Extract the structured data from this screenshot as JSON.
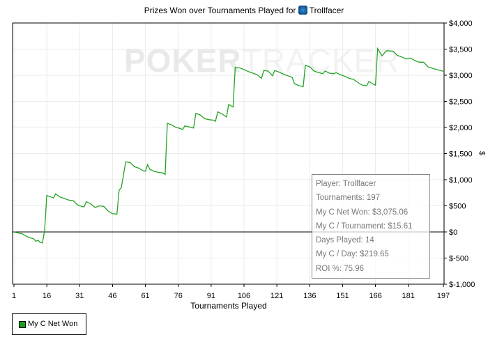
{
  "chart_data": {
    "type": "line",
    "title": "Prizes Won over Tournaments Played for",
    "title_player": "Trollfacer",
    "title_icon": "pokerstars-spade-icon",
    "watermark": "POKERTRACKER",
    "xlabel": "Tournaments Played",
    "ylabel": "$",
    "xlim": [
      1,
      197
    ],
    "ylim": [
      -1000,
      4000
    ],
    "x_ticks": [
      "1",
      "16",
      "31",
      "46",
      "61",
      "76",
      "91",
      "106",
      "121",
      "136",
      "151",
      "166",
      "181",
      "197"
    ],
    "y_ticks": [
      "$4,000",
      "$3,500",
      "$3,000",
      "$2,500",
      "$2,000",
      "$1,500",
      "$1,000",
      "$500",
      "$0",
      "$-500",
      "$-1,000"
    ],
    "y_tick_values": [
      4000,
      3500,
      3000,
      2500,
      2000,
      1500,
      1000,
      500,
      0,
      -500,
      -1000
    ],
    "grid": true,
    "legend_placement": "bottom-left",
    "series": [
      {
        "name": "My C Net Won",
        "color": "#22a322",
        "points": [
          [
            1,
            0
          ],
          [
            3,
            -20
          ],
          [
            5,
            -40
          ],
          [
            7,
            -90
          ],
          [
            9,
            -120
          ],
          [
            10,
            -130
          ],
          [
            11,
            -180
          ],
          [
            12,
            -160
          ],
          [
            13,
            -200
          ],
          [
            14,
            -210
          ],
          [
            15,
            30
          ],
          [
            16,
            700
          ],
          [
            18,
            670
          ],
          [
            19,
            650
          ],
          [
            20,
            730
          ],
          [
            22,
            670
          ],
          [
            24,
            640
          ],
          [
            26,
            610
          ],
          [
            28,
            600
          ],
          [
            30,
            520
          ],
          [
            32,
            490
          ],
          [
            33,
            480
          ],
          [
            34,
            580
          ],
          [
            36,
            540
          ],
          [
            38,
            470
          ],
          [
            40,
            500
          ],
          [
            42,
            490
          ],
          [
            44,
            400
          ],
          [
            46,
            350
          ],
          [
            48,
            340
          ],
          [
            49,
            800
          ],
          [
            50,
            850
          ],
          [
            52,
            1340
          ],
          [
            54,
            1330
          ],
          [
            56,
            1250
          ],
          [
            58,
            1220
          ],
          [
            60,
            1170
          ],
          [
            61,
            1160
          ],
          [
            62,
            1290
          ],
          [
            63,
            1200
          ],
          [
            65,
            1160
          ],
          [
            67,
            1140
          ],
          [
            69,
            1130
          ],
          [
            70,
            1100
          ],
          [
            71,
            2080
          ],
          [
            73,
            2050
          ],
          [
            75,
            2000
          ],
          [
            77,
            1980
          ],
          [
            78,
            1960
          ],
          [
            79,
            2030
          ],
          [
            81,
            2010
          ],
          [
            83,
            1990
          ],
          [
            84,
            2270
          ],
          [
            86,
            2240
          ],
          [
            88,
            2170
          ],
          [
            90,
            2150
          ],
          [
            92,
            2140
          ],
          [
            93,
            2120
          ],
          [
            94,
            2300
          ],
          [
            96,
            2260
          ],
          [
            98,
            2200
          ],
          [
            99,
            2440
          ],
          [
            101,
            2390
          ],
          [
            102,
            3150
          ],
          [
            104,
            3140
          ],
          [
            106,
            3110
          ],
          [
            108,
            3070
          ],
          [
            110,
            3040
          ],
          [
            112,
            3010
          ],
          [
            114,
            2940
          ],
          [
            115,
            3090
          ],
          [
            117,
            3080
          ],
          [
            119,
            2990
          ],
          [
            120,
            3090
          ],
          [
            122,
            3060
          ],
          [
            124,
            3020
          ],
          [
            126,
            2990
          ],
          [
            128,
            2960
          ],
          [
            129,
            2840
          ],
          [
            131,
            2800
          ],
          [
            133,
            2780
          ],
          [
            134,
            3190
          ],
          [
            136,
            3160
          ],
          [
            138,
            3080
          ],
          [
            140,
            3050
          ],
          [
            142,
            3030
          ],
          [
            143,
            3080
          ],
          [
            145,
            3040
          ],
          [
            147,
            3030
          ],
          [
            148,
            3050
          ],
          [
            150,
            3010
          ],
          [
            152,
            2980
          ],
          [
            154,
            2940
          ],
          [
            156,
            2920
          ],
          [
            158,
            2860
          ],
          [
            160,
            2810
          ],
          [
            162,
            2800
          ],
          [
            163,
            2880
          ],
          [
            165,
            2830
          ],
          [
            166,
            2810
          ],
          [
            167,
            3510
          ],
          [
            169,
            3370
          ],
          [
            171,
            3470
          ],
          [
            174,
            3460
          ],
          [
            176,
            3380
          ],
          [
            178,
            3350
          ],
          [
            180,
            3310
          ],
          [
            182,
            3330
          ],
          [
            184,
            3280
          ],
          [
            186,
            3250
          ],
          [
            188,
            3250
          ],
          [
            190,
            3160
          ],
          [
            193,
            3120
          ],
          [
            197,
            3075.06
          ]
        ]
      }
    ]
  },
  "tooltip": {
    "lines": [
      "Player: Trollfacer",
      "Tournaments: 197",
      "My C Net Won: $3,075.06",
      "My C / Tournament: $15.61",
      "Days Played: 14",
      "My C / Day: $219.65",
      "ROI %: 75.96"
    ]
  },
  "legend": {
    "label": "My C Net Won",
    "color": "#1a9e1a"
  }
}
